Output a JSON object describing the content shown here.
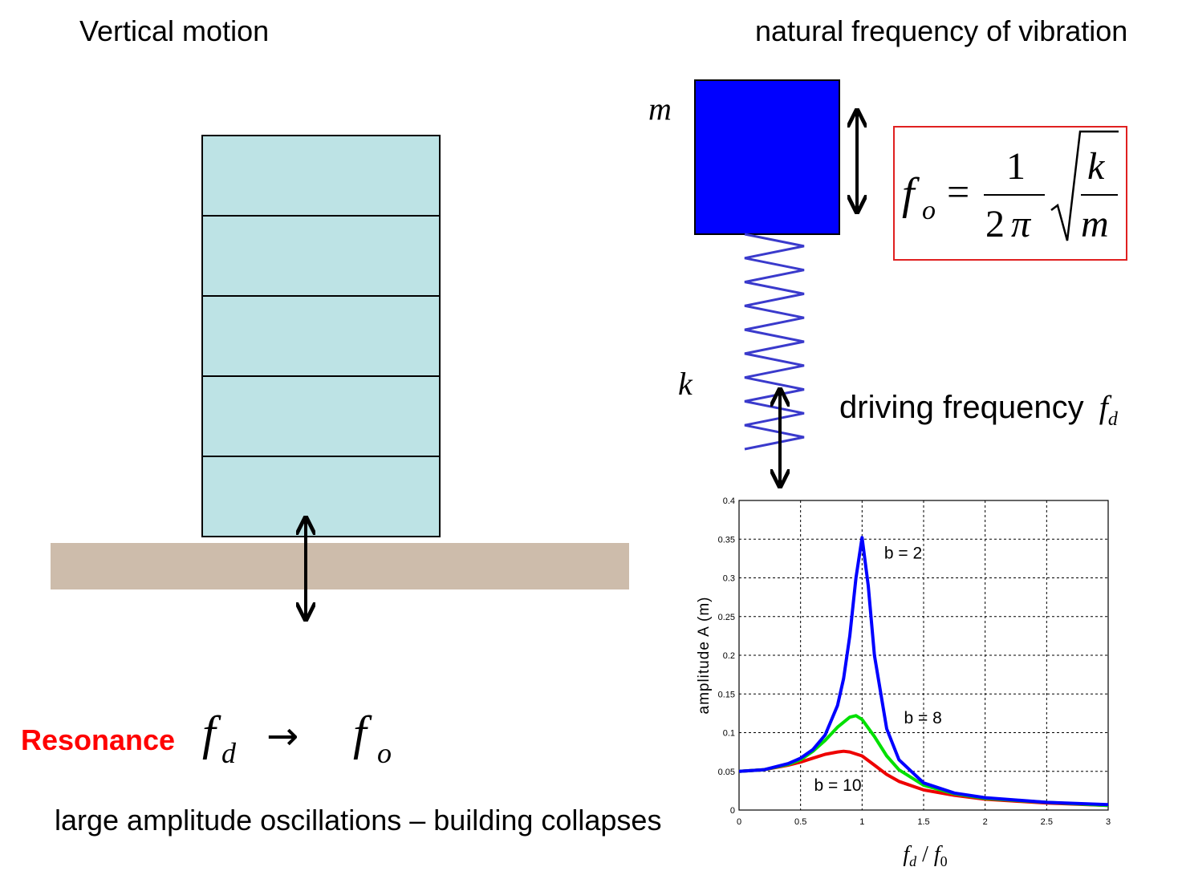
{
  "headings": {
    "left": "Vertical motion",
    "right": "natural frequency of vibration"
  },
  "building": {
    "floor_count": 5
  },
  "spring_mass": {
    "mass_label": "m",
    "spring_label": "k",
    "driving_label": "driving frequency",
    "driving_symbol": "f",
    "driving_subscript": "d"
  },
  "formula": {
    "lhs": "f",
    "lhs_sub": "o",
    "equals": "=",
    "numerator": "1",
    "denominator_num": "2",
    "denominator_pi": "π",
    "root_num": "k",
    "root_den": "m"
  },
  "resonance": {
    "label": "Resonance",
    "fd": "f",
    "fd_sub": "d",
    "arrow": "→",
    "fo": "f",
    "fo_sub": "o"
  },
  "caption": "large amplitude oscillations – building collapses",
  "colors": {
    "building": "#bde3e5",
    "ground": "#cdbcab",
    "mass": "#0000ff",
    "spring": "#3a3acc",
    "formula_border": "#e02020",
    "resonance_text": "#ff0000"
  },
  "chart_data": {
    "type": "line",
    "xlabel_parts": [
      "f",
      "d",
      " / ",
      "f",
      "0"
    ],
    "ylabel": "amplitude  A  (m)",
    "xlim": [
      0,
      3
    ],
    "ylim": [
      0,
      0.4
    ],
    "xticks": [
      "0",
      "0.5",
      "1",
      "1.5",
      "2",
      "2.5",
      "3"
    ],
    "yticks": [
      "0",
      "0.05",
      "0.1",
      "0.15",
      "0.2",
      "0.25",
      "0.3",
      "0.35",
      "0.4"
    ],
    "grid": true,
    "series": [
      {
        "name": "b = 2",
        "color": "#0000ff",
        "x": [
          0,
          0.2,
          0.4,
          0.5,
          0.6,
          0.7,
          0.8,
          0.85,
          0.9,
          0.95,
          1.0,
          1.05,
          1.1,
          1.2,
          1.3,
          1.5,
          1.75,
          2,
          2.5,
          3
        ],
        "y": [
          0.05,
          0.052,
          0.06,
          0.067,
          0.078,
          0.097,
          0.135,
          0.17,
          0.225,
          0.3,
          0.352,
          0.29,
          0.2,
          0.105,
          0.065,
          0.035,
          0.022,
          0.016,
          0.01,
          0.007
        ]
      },
      {
        "name": "b = 8",
        "color": "#00e000",
        "x": [
          0,
          0.2,
          0.4,
          0.5,
          0.6,
          0.7,
          0.8,
          0.9,
          0.95,
          1.0,
          1.1,
          1.2,
          1.3,
          1.5,
          1.75,
          2,
          2.5,
          3
        ],
        "y": [
          0.05,
          0.052,
          0.059,
          0.065,
          0.076,
          0.09,
          0.107,
          0.12,
          0.122,
          0.117,
          0.095,
          0.07,
          0.052,
          0.032,
          0.021,
          0.015,
          0.01,
          0.006
        ]
      },
      {
        "name": "b = 10",
        "color": "#ee0000",
        "x": [
          0,
          0.2,
          0.4,
          0.5,
          0.6,
          0.7,
          0.8,
          0.85,
          0.9,
          1.0,
          1.1,
          1.2,
          1.3,
          1.5,
          1.75,
          2,
          2.5,
          3
        ],
        "y": [
          0.05,
          0.052,
          0.058,
          0.062,
          0.067,
          0.072,
          0.075,
          0.076,
          0.075,
          0.07,
          0.058,
          0.046,
          0.037,
          0.026,
          0.019,
          0.014,
          0.009,
          0.006
        ]
      }
    ],
    "annotations": [
      "b = 2",
      "b = 8",
      "b = 10"
    ]
  }
}
